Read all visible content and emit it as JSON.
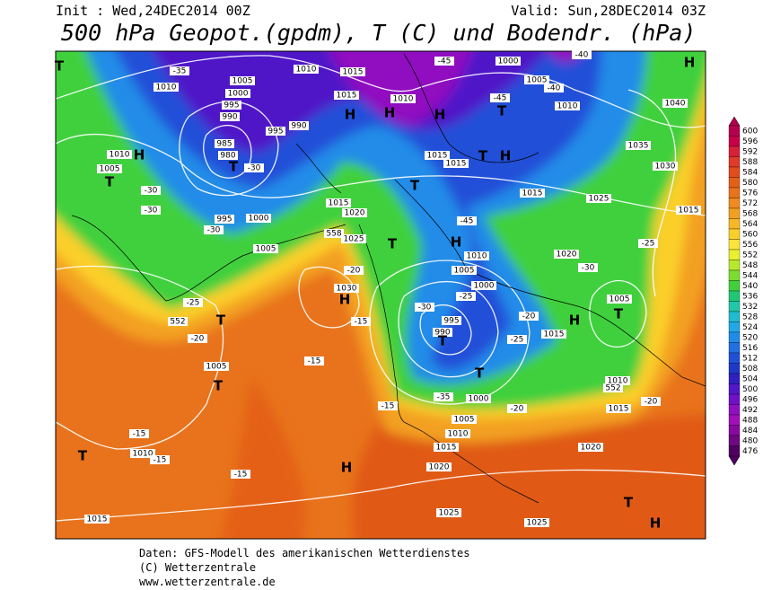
{
  "header": {
    "init": "Init : Wed,24DEC2014 00Z",
    "valid": "Valid: Sun,28DEC2014 03Z",
    "title": "500 hPa Geopot.(gpdm), T (C) und Bodendr. (hPa)"
  },
  "legend": {
    "levels": [
      600,
      596,
      592,
      588,
      584,
      580,
      576,
      572,
      568,
      564,
      560,
      556,
      552,
      548,
      544,
      540,
      536,
      532,
      528,
      524,
      520,
      516,
      512,
      508,
      504,
      500,
      496,
      492,
      488,
      484,
      480,
      476
    ],
    "colors": [
      "#b5004f",
      "#c80047",
      "#d8203a",
      "#e03a2a",
      "#e04c1c",
      "#e46018",
      "#e8731c",
      "#ee8a20",
      "#f3a020",
      "#f7b825",
      "#fbcf2a",
      "#fde43a",
      "#e8f030",
      "#b8e82c",
      "#7cdc30",
      "#40d03c",
      "#20c874",
      "#20c8a8",
      "#20bcd0",
      "#20a8e8",
      "#208ce8",
      "#2070e0",
      "#2050d8",
      "#2038c8",
      "#3020c0",
      "#5018c8",
      "#7010c8",
      "#9010c0",
      "#a010b8",
      "#8808a0",
      "#700880",
      "#500060"
    ]
  },
  "map": {
    "labels": [
      "T",
      "1010",
      "-35",
      "1005",
      "1000",
      "995",
      "990",
      "985",
      "980",
      "T",
      "-30",
      "995",
      "990",
      "1010",
      "1015",
      "1015",
      "H",
      "H",
      "1010",
      "H",
      "-45",
      "-45",
      "T",
      "1000",
      "1005",
      "-40",
      "1010",
      "-40",
      "H",
      "1040",
      "1035",
      "1030",
      "1010",
      "H",
      "1005",
      "T",
      "-30",
      "-30",
      "995",
      "1000",
      "-30",
      "1005",
      "1015",
      "1020",
      "1025",
      "558",
      "1015",
      "1015",
      "T",
      "H",
      "T",
      "1015",
      "1025",
      "1015",
      "-45",
      "T",
      "H",
      "1010",
      "1020",
      "-25",
      "-30",
      "-20",
      "1030",
      "H",
      "-15",
      "-25",
      "552",
      "T",
      "-20",
      "1005",
      "T",
      "-15",
      "1005",
      "1000",
      "-25",
      "-30",
      "995",
      "990",
      "T",
      "-20",
      "-25",
      "H",
      "1015",
      "T",
      "1005",
      "T",
      "1000",
      "-35",
      "1010",
      "552",
      "-20",
      "1015",
      "-15",
      "-20",
      "1005",
      "1010",
      "1015",
      "1020",
      "T",
      "-15",
      "1010",
      "-15",
      "-15",
      "H",
      "1020",
      "1025",
      "1025",
      "T",
      "H",
      "1015"
    ]
  },
  "footer": {
    "lines": [
      "Daten: GFS-Modell des amerikanischen Wetterdienstes",
      "(C) Wetterzentrale",
      "www.wetterzentrale.de"
    ]
  }
}
